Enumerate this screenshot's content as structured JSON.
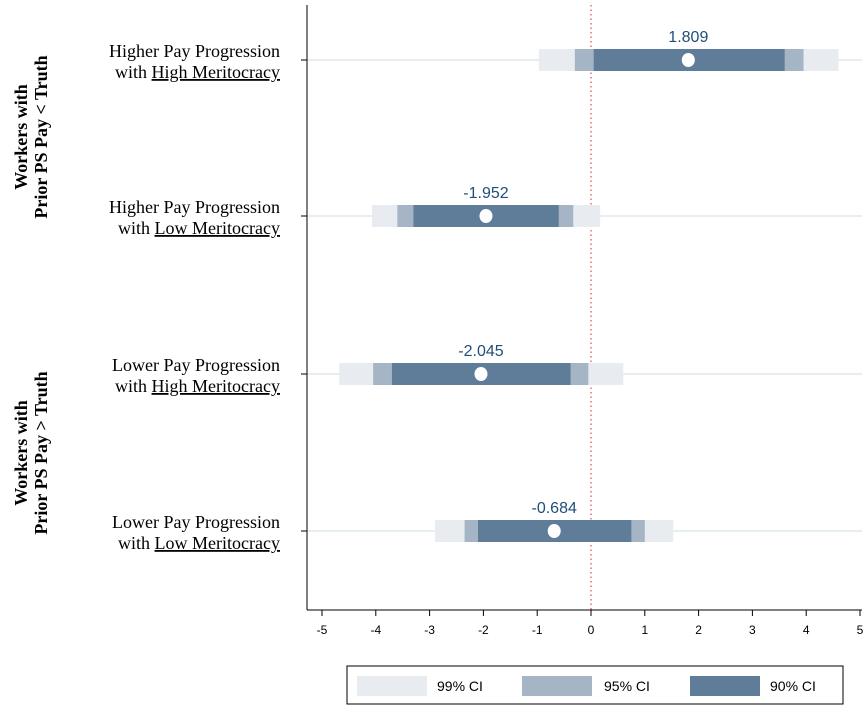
{
  "chart_data": {
    "type": "coefficient_plot",
    "xlim": [
      -5,
      5
    ],
    "xticks": [
      "-5",
      "-4",
      "-3",
      "-2",
      "-1",
      "0",
      "1",
      "2",
      "3",
      "4",
      "5"
    ],
    "reference_line": 0,
    "groups": [
      {
        "label_line1": "Workers with",
        "label_line2": "Prior PS Pay < Truth"
      },
      {
        "label_line1": "Workers with",
        "label_line2": "Prior PS Pay > Truth"
      }
    ],
    "rows": [
      {
        "line1": "Higher Pay Progression",
        "line2_prefix": "with ",
        "line2_emph": "High Meritocracy",
        "estimate": 1.809,
        "label": "1.809",
        "ci90": [
          0.05,
          3.6
        ],
        "ci95": [
          -0.3,
          3.95
        ],
        "ci99": [
          -0.97,
          4.6
        ]
      },
      {
        "line1": "Higher Pay Progression",
        "line2_prefix": "with ",
        "line2_emph": "Low Meritocracy",
        "estimate": -1.952,
        "label": "-1.952",
        "ci90": [
          -3.3,
          -0.6
        ],
        "ci95": [
          -3.6,
          -0.33
        ],
        "ci99": [
          -4.07,
          0.17
        ]
      },
      {
        "line1": "Lower Pay Progression",
        "line2_prefix": "with ",
        "line2_emph": "High Meritocracy",
        "estimate": -2.045,
        "label": "-2.045",
        "ci90": [
          -3.7,
          -0.38
        ],
        "ci95": [
          -4.05,
          -0.05
        ],
        "ci99": [
          -4.68,
          0.6
        ]
      },
      {
        "line1": "Lower Pay Progression",
        "line2_prefix": "with ",
        "line2_emph": "Low Meritocracy",
        "estimate": -0.684,
        "label": "-0.684",
        "ci90": [
          -2.1,
          0.75
        ],
        "ci95": [
          -2.35,
          1.0
        ],
        "ci99": [
          -2.9,
          1.53
        ]
      }
    ],
    "legend": [
      {
        "label": "99% CI",
        "color": "#e8ecf0"
      },
      {
        "label": "95% CI",
        "color": "#a6b5c6"
      },
      {
        "label": "90% CI",
        "color": "#5f7c98"
      }
    ],
    "colors": {
      "ci99": "#e8ecf0",
      "ci95": "#a6b5c6",
      "ci90": "#5f7c98",
      "point": "#ffffff",
      "value_label": "#1f4e79",
      "reference_line": "#d62728",
      "gridline": "#e6eef1"
    }
  }
}
